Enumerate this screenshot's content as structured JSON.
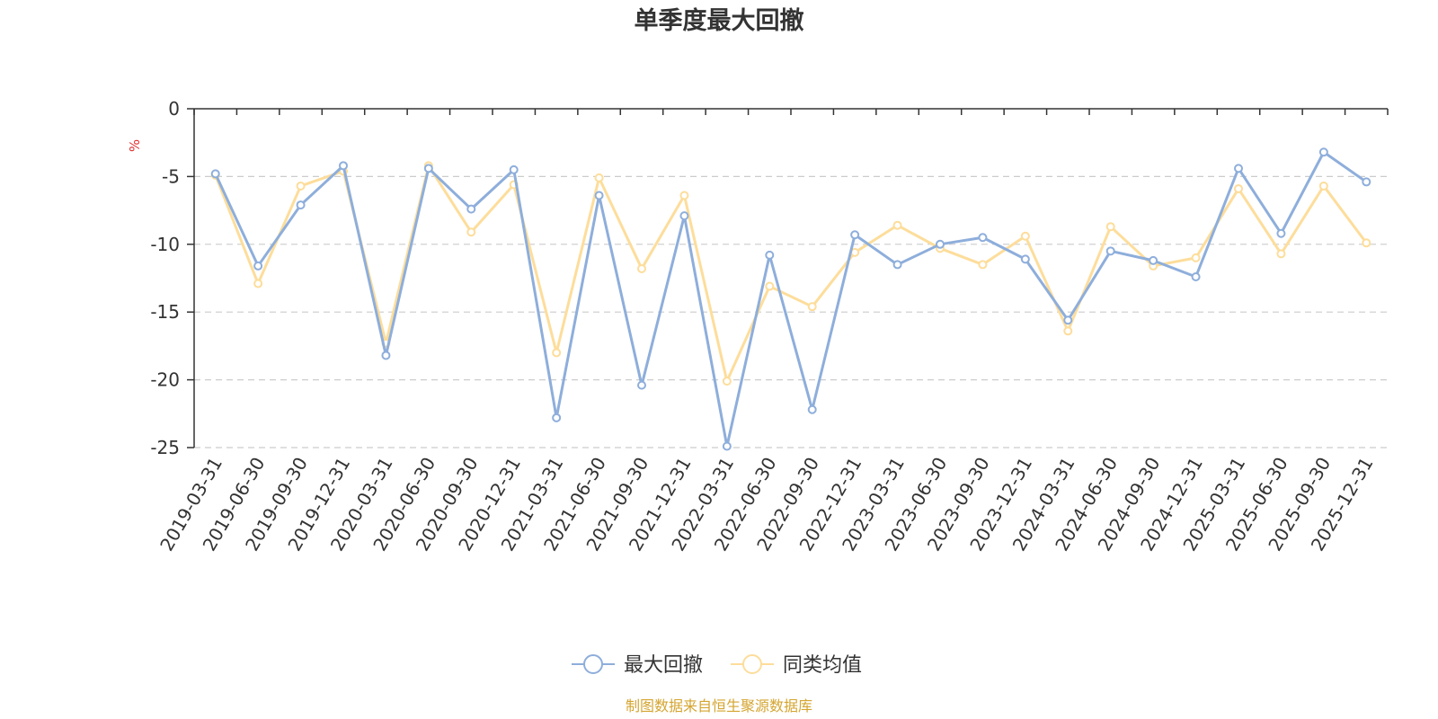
{
  "chart_data": {
    "type": "line",
    "title": "单季度最大回撤",
    "ylabel": "%",
    "xlabel": "",
    "ylim": [
      -25,
      0
    ],
    "yticks": [
      0,
      -5,
      -10,
      -15,
      -20,
      -25
    ],
    "ytick_labels": [
      "0",
      "-5",
      "-10",
      "-15",
      "-20",
      "-25"
    ],
    "grid": true,
    "legend_position": "bottom-center",
    "categories": [
      "2019-03-31",
      "2019-06-30",
      "2019-09-30",
      "2019-12-31",
      "2020-03-31",
      "2020-06-30",
      "2020-09-30",
      "2020-12-31",
      "2021-03-31",
      "2021-06-30",
      "2021-09-30",
      "2021-12-31",
      "2022-03-31",
      "2022-06-30",
      "2022-09-30",
      "2022-12-31",
      "2023-03-31",
      "2023-06-30",
      "2023-09-30",
      "2023-12-31",
      "2024-03-31",
      "2024-06-30",
      "2024-09-30",
      "2024-12-31",
      "2025-03-31",
      "2025-06-30",
      "2025-09-30",
      "2025-12-31"
    ],
    "series": [
      {
        "name": "最大回撤",
        "color": "#8eaedb",
        "values": [
          -4.8,
          -11.6,
          -7.1,
          -4.2,
          -18.2,
          -4.4,
          -7.4,
          -4.5,
          -22.8,
          -6.4,
          -20.4,
          -7.9,
          -24.9,
          -10.8,
          -22.2,
          -9.3,
          -11.5,
          -10.0,
          -9.5,
          -11.1,
          -15.6,
          -10.5,
          -11.2,
          -12.4,
          -4.4,
          -9.2,
          -3.2,
          -5.4
        ]
      },
      {
        "name": "同类均值",
        "color": "#fddd9b",
        "values": [
          -4.9,
          -12.9,
          -5.7,
          -4.6,
          -17.3,
          -4.2,
          -9.1,
          -5.6,
          -18.0,
          -5.1,
          -11.8,
          -6.4,
          -20.1,
          -13.1,
          -14.6,
          -10.6,
          -8.6,
          -10.3,
          -11.5,
          -9.4,
          -16.4,
          -8.7,
          -11.6,
          -11.0,
          -5.9,
          -10.7,
          -5.7,
          -9.9
        ]
      }
    ]
  },
  "footer": {
    "source": "制图数据来自恒生聚源数据库"
  },
  "colors": {
    "axis": "#333333",
    "grid": "#cccccc",
    "unit": "#e03030",
    "source": "#d4a530",
    "point_fill": "#ffffff"
  }
}
